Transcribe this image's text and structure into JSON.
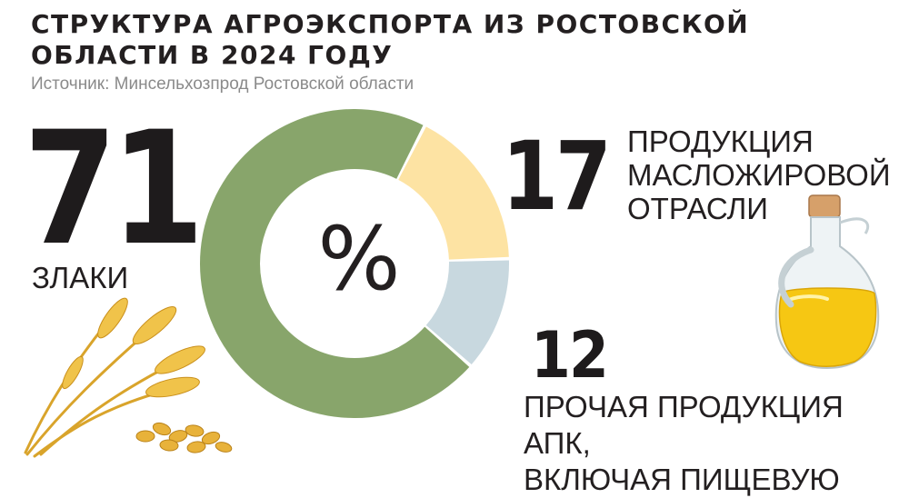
{
  "title": "СТРУКТУРА АГРОЭКСПОРТА ИЗ РОСТОВСКОЙ ОБЛАСТИ В 2024 ГОДУ",
  "subtitle": "Источник: Минсельхозпрод Ростовской области",
  "center_label": "%",
  "colors": {
    "cereals": "#88a56b",
    "oil": "#fde3a3",
    "other": "#c8d8df"
  },
  "chart_data": {
    "type": "pie",
    "title": "СТРУКТУРА АГРОЭКСПОРТА ИЗ РОСТОВСКОЙ ОБЛАСТИ В 2024 ГОДУ",
    "unit": "%",
    "categories": [
      "ЗЛАКИ",
      "ПРОДУКЦИЯ МАСЛОЖИРОВОЙ ОТРАСЛИ",
      "ПРОЧАЯ ПРОДУКЦИЯ АПК, ВКЛЮЧАЯ ПИЩЕВУЮ"
    ],
    "values": [
      71,
      17,
      12
    ],
    "legend": "none",
    "grid": false
  },
  "segments": [
    {
      "value": "71",
      "label": "ЗЛАКИ"
    },
    {
      "value": "17",
      "label_lines": [
        "ПРОДУКЦИЯ",
        "МАСЛОЖИРОВОЙ",
        "ОТРАСЛИ"
      ]
    },
    {
      "value": "12",
      "label_lines": [
        "ПРОЧАЯ ПРОДУКЦИЯ АПК,",
        "ВКЛЮЧАЯ ПИЩЕВУЮ"
      ]
    }
  ],
  "illustrations": [
    "wheat-ears-illustration",
    "oil-jug-illustration"
  ]
}
